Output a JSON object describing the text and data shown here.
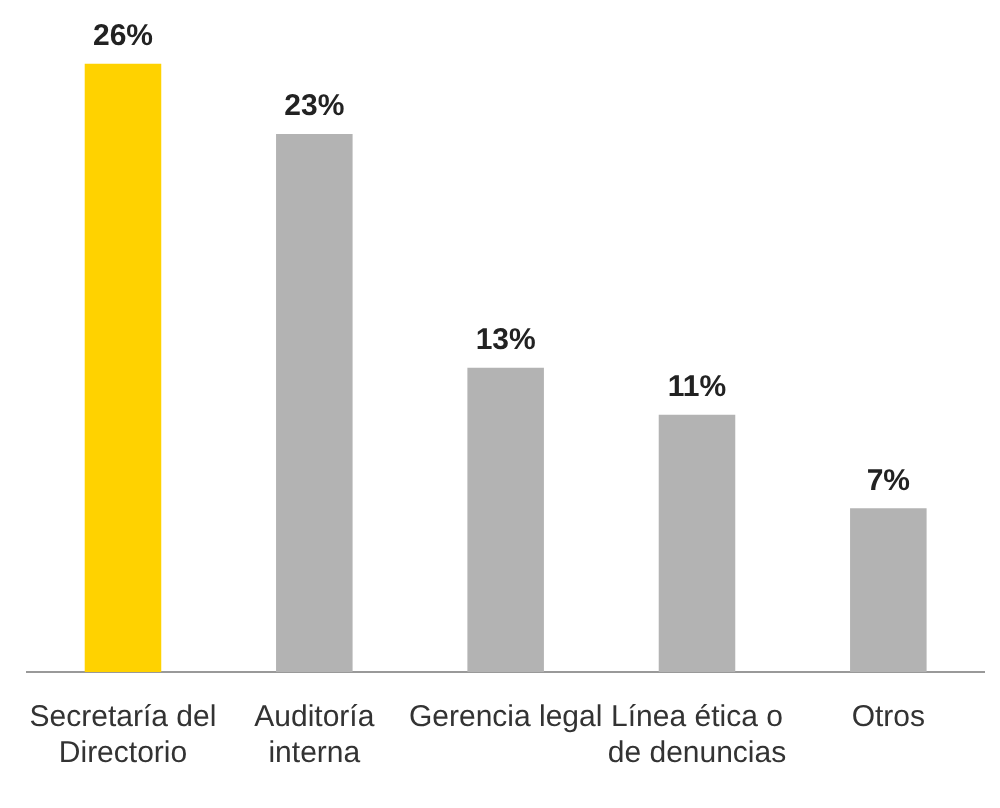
{
  "chart_data": {
    "type": "bar",
    "categories": [
      "Secretaría del Directorio",
      "Auditoría interna",
      "Gerencia legal",
      "Línea ética o de denuncias",
      "Otros"
    ],
    "values": [
      26,
      23,
      13,
      11,
      7
    ],
    "colors": [
      "#ffd200",
      "#b3b3b3",
      "#b3b3b3",
      "#b3b3b3",
      "#b3b3b3"
    ],
    "value_labels": [
      "26%",
      "23%",
      "13%",
      "11%",
      "7%"
    ],
    "grid": false,
    "legend": false
  }
}
